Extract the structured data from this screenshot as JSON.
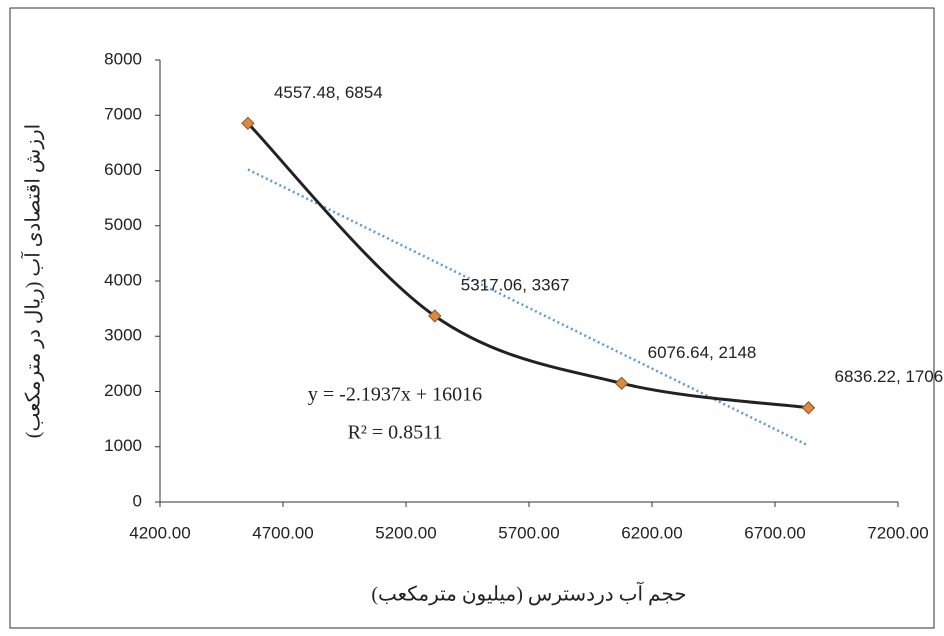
{
  "chart_data": {
    "type": "scatter",
    "x_label": "حجم آب دردسترس (میلیون مترمکعب)",
    "y_label": "ارزش اقتصادی آب (ریال در مترمکعب)",
    "series": [
      {
        "color": "#222222",
        "marker_color": "#e0893a",
        "x": [
          4557.48,
          5317.06,
          6076.64,
          6836.22
        ],
        "values": [
          6854,
          3367,
          2148,
          1706
        ],
        "value_labels": [
          "4557.48, 6854",
          "5317.06, 3367",
          "6076.64, 2148",
          "6836.22, 1706"
        ]
      }
    ],
    "trendline": {
      "slope": -2.1937,
      "intercept": 16016,
      "color": "#5b9bd5",
      "equation": "y = -2.1937x + 16016",
      "r2_label": "R² = 0.8511"
    },
    "xlim": [
      4200,
      7200
    ],
    "xticks": [
      {
        "value": 4200,
        "label": "4200.00"
      },
      {
        "value": 4700,
        "label": "4700.00"
      },
      {
        "value": 5200,
        "label": "5200.00"
      },
      {
        "value": 5700,
        "label": "5700.00"
      },
      {
        "value": 6200,
        "label": "6200.00"
      },
      {
        "value": 6700,
        "label": "6700.00"
      },
      {
        "value": 7200,
        "label": "7200.00"
      }
    ],
    "ylim": [
      0,
      8000
    ],
    "yticks": [
      0,
      1000,
      2000,
      3000,
      4000,
      5000,
      6000,
      7000,
      8000
    ],
    "grid": false
  }
}
